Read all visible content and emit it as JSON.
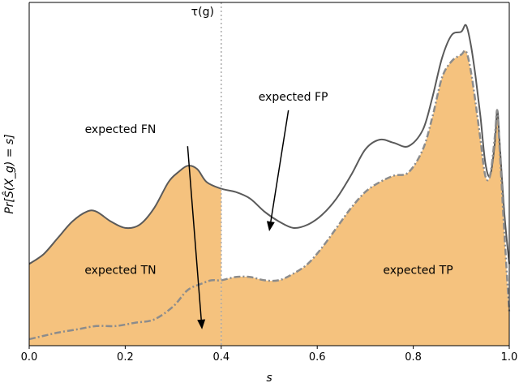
{
  "chart_data": {
    "type": "area",
    "xlabel": "s",
    "ylabel": "Pr[Ŝ(X_g) = s]",
    "xlim": [
      0.0,
      1.0
    ],
    "ylim": [
      0.0,
      1.0
    ],
    "x_ticks": [
      "0.0",
      "0.2",
      "0.4",
      "0.6",
      "0.8",
      "1.0"
    ],
    "y_ticks_shown": false,
    "grid": false,
    "threshold": {
      "x": 0.4,
      "label": "τ(g)"
    },
    "colors": {
      "fill": "#f5c27e",
      "total_line": "#5a5a5a",
      "positive_line": "#8c8c8c",
      "threshold_line": "#aaaaaa"
    },
    "series": [
      {
        "name": "",
        "style": "solid",
        "x": [
          0.0,
          0.03,
          0.06,
          0.09,
          0.12,
          0.14,
          0.17,
          0.2,
          0.23,
          0.26,
          0.29,
          0.31,
          0.33,
          0.35,
          0.37,
          0.4,
          0.43,
          0.46,
          0.49,
          0.52,
          0.55,
          0.58,
          0.61,
          0.64,
          0.67,
          0.7,
          0.73,
          0.76,
          0.79,
          0.82,
          0.84,
          0.86,
          0.88,
          0.9,
          0.91,
          0.92,
          0.93,
          0.94,
          0.95,
          0.96,
          0.97,
          0.975,
          0.98,
          0.99,
          1.0
        ],
        "values": [
          0.25,
          0.28,
          0.33,
          0.38,
          0.41,
          0.41,
          0.38,
          0.36,
          0.37,
          0.42,
          0.5,
          0.53,
          0.55,
          0.54,
          0.5,
          0.48,
          0.47,
          0.45,
          0.41,
          0.38,
          0.36,
          0.37,
          0.4,
          0.45,
          0.52,
          0.6,
          0.63,
          0.62,
          0.61,
          0.66,
          0.76,
          0.88,
          0.95,
          0.96,
          0.98,
          0.92,
          0.82,
          0.7,
          0.56,
          0.52,
          0.62,
          0.72,
          0.62,
          0.4,
          0.25
        ]
      },
      {
        "name": "",
        "style": "dash-dot",
        "x": [
          0.0,
          0.03,
          0.06,
          0.1,
          0.14,
          0.18,
          0.22,
          0.26,
          0.3,
          0.33,
          0.36,
          0.38,
          0.4,
          0.43,
          0.46,
          0.49,
          0.52,
          0.55,
          0.58,
          0.61,
          0.64,
          0.67,
          0.7,
          0.73,
          0.76,
          0.79,
          0.82,
          0.84,
          0.86,
          0.88,
          0.9,
          0.91,
          0.92,
          0.93,
          0.94,
          0.95,
          0.96,
          0.97,
          0.975,
          0.98,
          0.99,
          1.0
        ],
        "values": [
          0.02,
          0.03,
          0.04,
          0.05,
          0.06,
          0.06,
          0.07,
          0.08,
          0.12,
          0.17,
          0.19,
          0.2,
          0.2,
          0.21,
          0.21,
          0.2,
          0.2,
          0.22,
          0.25,
          0.3,
          0.36,
          0.42,
          0.47,
          0.5,
          0.52,
          0.53,
          0.6,
          0.7,
          0.82,
          0.87,
          0.89,
          0.9,
          0.84,
          0.74,
          0.63,
          0.52,
          0.52,
          0.64,
          0.72,
          0.6,
          0.34,
          0.1
        ]
      }
    ],
    "annotations": [
      {
        "text": "expected FP",
        "x": 0.55,
        "y": 0.75
      },
      {
        "text": "expected FN",
        "x": 0.19,
        "y": 0.65
      },
      {
        "text": "expected TN",
        "x": 0.19,
        "y": 0.22
      },
      {
        "text": "expected TP",
        "x": 0.81,
        "y": 0.22
      }
    ],
    "arrows": [
      {
        "from": [
          0.54,
          0.72
        ],
        "to": [
          0.5,
          0.35
        ]
      },
      {
        "from": [
          0.33,
          0.61
        ],
        "to": [
          0.36,
          0.05
        ]
      }
    ]
  }
}
